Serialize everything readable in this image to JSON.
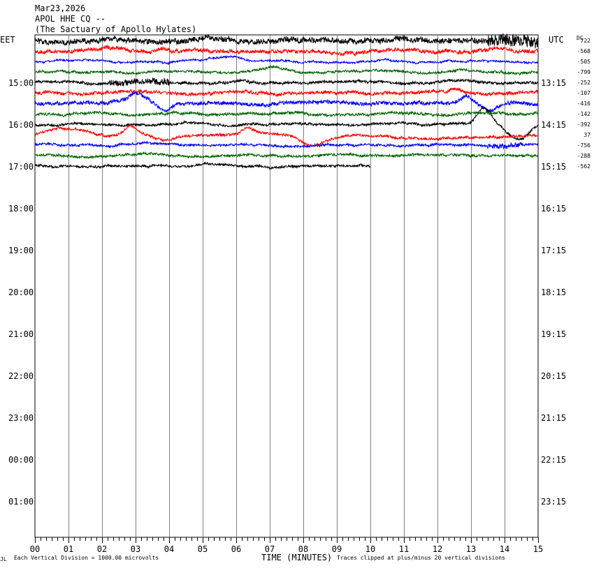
{
  "header": {
    "date": "Mar23,2026",
    "station": "APOL HHE CQ --",
    "site": "(The Sactuary of Apollo Hylates)"
  },
  "chart_data": {
    "type": "line",
    "left_timezone": "EET",
    "right_timezone": "UTC",
    "dc_label": "DC",
    "left_hour_labels": [
      "15:00",
      "16:00",
      "17:00",
      "18:00",
      "19:00",
      "20:00",
      "21:00",
      "22:00",
      "23:00",
      "00:00",
      "01:00"
    ],
    "right_hour_labels": [
      "13:15",
      "14:15",
      "15:15",
      "16:15",
      "17:15",
      "18:15",
      "19:15",
      "20:15",
      "21:15",
      "22:15",
      "23:15"
    ],
    "x_tick_labels": [
      "00",
      "01",
      "02",
      "03",
      "04",
      "05",
      "06",
      "07",
      "08",
      "09",
      "10",
      "11",
      "12",
      "13",
      "14",
      "15"
    ],
    "xlabel": "TIME (MINUTES)",
    "xlim": [
      0,
      15
    ],
    "footer_left_mark": "JL",
    "footer_left": "Each Vertical Division = 1000.00 microvolts",
    "footer_right": "Traces clipped at plus/minus 20 vertical divisions",
    "trace_colors": [
      "#000000",
      "#ff0000",
      "#0000ff",
      "#006400"
    ],
    "dc_offsets": [
      "722",
      "-568",
      "-505",
      "-799",
      "-252",
      "-107",
      "-416",
      "-142",
      "-392",
      "37",
      "-756",
      "-288",
      "-562"
    ],
    "traces": [
      {
        "color_index": 0,
        "end_minute": 15,
        "amplitude": 3,
        "noise": 2.5,
        "bursts": [
          [
            0,
            15,
            1.5
          ],
          [
            13.5,
            15,
            3.5
          ]
        ]
      },
      {
        "color_index": 1,
        "end_minute": 15,
        "amplitude": 3,
        "noise": 2.5,
        "bursts": [
          [
            0,
            15,
            1
          ]
        ],
        "events": [
          [
            1.5,
            3,
            -3
          ],
          [
            3.5,
            4.2,
            -5
          ]
        ]
      },
      {
        "color_index": 2,
        "end_minute": 15,
        "amplitude": 2,
        "noise": 1.2,
        "bursts": [
          [
            0,
            15,
            1
          ]
        ],
        "events": [
          [
            3.5,
            4.5,
            3
          ],
          [
            4.8,
            6.5,
            -8
          ]
        ]
      },
      {
        "color_index": 3,
        "end_minute": 15,
        "amplitude": 2,
        "noise": 1.5,
        "bursts": [
          [
            0,
            15,
            1
          ]
        ],
        "events": [
          [
            6.5,
            7.8,
            -4
          ]
        ]
      },
      {
        "color_index": 0,
        "end_minute": 15,
        "amplitude": 2,
        "noise": 1.8,
        "bursts": [
          [
            0,
            15,
            1
          ],
          [
            2.2,
            4,
            2.5
          ]
        ]
      },
      {
        "color_index": 1,
        "end_minute": 15,
        "amplitude": 2,
        "noise": 2.2,
        "bursts": [
          [
            0,
            15,
            1
          ]
        ],
        "events": [
          [
            12.2,
            12.9,
            -6
          ]
        ]
      },
      {
        "color_index": 2,
        "end_minute": 15,
        "amplitude": 2,
        "noise": 2.5,
        "bursts": [
          [
            0,
            15,
            1
          ]
        ],
        "events": [
          [
            2.5,
            3.6,
            -14
          ],
          [
            3.6,
            4.2,
            10
          ],
          [
            12.5,
            13.2,
            -12
          ],
          [
            13.2,
            14,
            10
          ]
        ]
      },
      {
        "color_index": 3,
        "end_minute": 15,
        "amplitude": 2,
        "noise": 1.8,
        "bursts": [
          [
            0,
            15,
            1
          ]
        ]
      },
      {
        "color_index": 0,
        "end_minute": 15,
        "amplitude": 2,
        "noise": 1.6,
        "bursts": [
          [
            0,
            15,
            1
          ]
        ],
        "events": [
          [
            13,
            13.8,
            -22
          ],
          [
            13.8,
            15,
            22
          ]
        ]
      },
      {
        "color_index": 1,
        "end_minute": 15,
        "amplitude": 2,
        "noise": 1.6,
        "bursts": [
          [
            0,
            15,
            1
          ]
        ],
        "events": [
          [
            0,
            2,
            -8
          ],
          [
            2.5,
            3.2,
            -14
          ],
          [
            3.2,
            4.5,
            10
          ],
          [
            6,
            6.7,
            -10
          ],
          [
            7.5,
            9,
            14
          ],
          [
            9,
            15,
            6
          ]
        ]
      },
      {
        "color_index": 2,
        "end_minute": 15,
        "amplitude": 2,
        "noise": 1.5,
        "bursts": [
          [
            0,
            15,
            1
          ],
          [
            13.5,
            14.5,
            2.5
          ]
        ]
      },
      {
        "color_index": 3,
        "end_minute": 15,
        "amplitude": 2,
        "noise": 1.6,
        "bursts": [
          [
            0,
            15,
            1
          ]
        ]
      },
      {
        "color_index": 0,
        "end_minute": 10,
        "amplitude": 2,
        "noise": 1.6,
        "bursts": [
          [
            0,
            10,
            1
          ]
        ]
      }
    ]
  }
}
